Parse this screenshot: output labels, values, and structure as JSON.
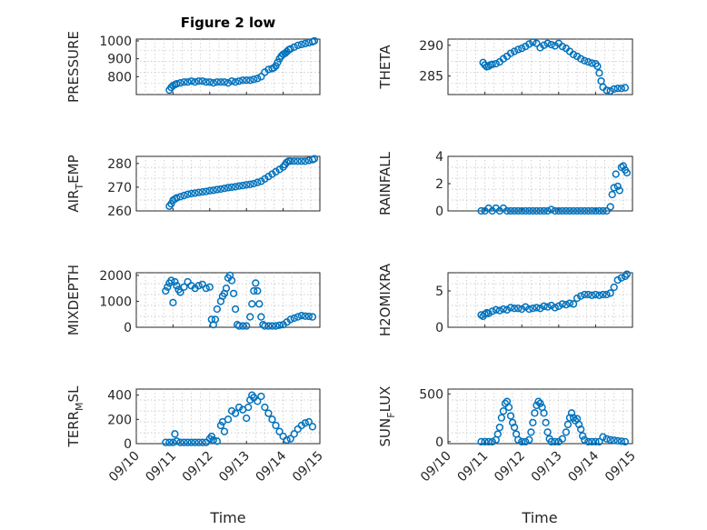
{
  "figure": {
    "title": "Figure 2 low",
    "xlabel": "Time",
    "marker_color": "#0072BD"
  },
  "chart_data": [
    {
      "type": "scatter",
      "ylabel": "PRESSURE",
      "ylim": [
        700,
        1010
      ],
      "yticks": [
        "800",
        "900",
        "1000"
      ],
      "ytick_values": [
        800,
        900,
        1000
      ],
      "xlim": [
        0,
        5
      ],
      "grid": true,
      "x": [
        0.9,
        0.95,
        1.0,
        1.05,
        1.1,
        1.2,
        1.3,
        1.4,
        1.5,
        1.6,
        1.7,
        1.8,
        1.9,
        2.0,
        2.1,
        2.2,
        2.3,
        2.4,
        2.5,
        2.6,
        2.7,
        2.8,
        2.9,
        3.0,
        3.1,
        3.2,
        3.3,
        3.4,
        3.5,
        3.6,
        3.7,
        3.75,
        3.8,
        3.85,
        3.9,
        3.95,
        4.0,
        4.05,
        4.1,
        4.15,
        4.2,
        4.3,
        4.4,
        4.5,
        4.6,
        4.7,
        4.8,
        4.85
      ],
      "y": [
        725,
        740,
        750,
        755,
        760,
        765,
        770,
        770,
        775,
        770,
        775,
        775,
        770,
        770,
        765,
        770,
        770,
        770,
        765,
        775,
        770,
        775,
        780,
        780,
        780,
        785,
        790,
        800,
        825,
        840,
        845,
        850,
        860,
        880,
        900,
        915,
        925,
        930,
        940,
        950,
        955,
        965,
        975,
        980,
        985,
        990,
        995,
        1000
      ]
    },
    {
      "type": "scatter",
      "ylabel": "THETA",
      "ylim": [
        282,
        291
      ],
      "yticks": [
        "285",
        "290"
      ],
      "ytick_values": [
        285,
        290
      ],
      "xlim": [
        0,
        5
      ],
      "grid": true,
      "x": [
        0.95,
        1.0,
        1.05,
        1.1,
        1.15,
        1.2,
        1.3,
        1.4,
        1.5,
        1.6,
        1.7,
        1.8,
        1.9,
        2.0,
        2.1,
        2.2,
        2.3,
        2.4,
        2.5,
        2.6,
        2.7,
        2.8,
        2.9,
        3.0,
        3.1,
        3.2,
        3.3,
        3.4,
        3.5,
        3.6,
        3.7,
        3.8,
        3.9,
        4.0,
        4.05,
        4.1,
        4.15,
        4.2,
        4.3,
        4.4,
        4.5,
        4.6,
        4.7,
        4.8
      ],
      "y": [
        287.2,
        286.8,
        286.5,
        286.6,
        286.8,
        286.9,
        287.0,
        287.3,
        287.8,
        288.2,
        288.7,
        289.0,
        289.3,
        289.5,
        289.8,
        290.2,
        290.5,
        290.3,
        289.6,
        290.0,
        290.3,
        290.1,
        289.9,
        290.3,
        289.8,
        289.5,
        289.0,
        288.5,
        288.2,
        287.8,
        287.5,
        287.3,
        287.1,
        287.0,
        286.6,
        285.5,
        284.2,
        283.2,
        282.7,
        282.6,
        282.9,
        283.0,
        283.0,
        283.1
      ]
    },
    {
      "type": "scatter",
      "ylabel": "AIR_TEMP",
      "ylim": [
        260,
        283
      ],
      "yticks": [
        "260",
        "270",
        "280"
      ],
      "ytick_values": [
        260,
        270,
        280
      ],
      "xlim": [
        0,
        5
      ],
      "grid": true,
      "x": [
        0.9,
        0.95,
        1.0,
        1.05,
        1.1,
        1.2,
        1.3,
        1.4,
        1.5,
        1.6,
        1.7,
        1.8,
        1.9,
        2.0,
        2.1,
        2.2,
        2.3,
        2.4,
        2.5,
        2.6,
        2.7,
        2.8,
        2.9,
        3.0,
        3.1,
        3.2,
        3.3,
        3.4,
        3.5,
        3.6,
        3.7,
        3.8,
        3.9,
        4.0,
        4.05,
        4.1,
        4.15,
        4.2,
        4.3,
        4.4,
        4.5,
        4.6,
        4.7,
        4.8,
        4.85
      ],
      "y": [
        262,
        263,
        264.5,
        265,
        265.5,
        266,
        266.5,
        267,
        267.3,
        267.5,
        267.8,
        268,
        268.2,
        268.5,
        268.7,
        269,
        269.2,
        269.5,
        269.8,
        270,
        270.2,
        270.5,
        270.7,
        271,
        271.2,
        271.5,
        272,
        272.5,
        273.5,
        274.5,
        275.5,
        276.5,
        277.5,
        278.5,
        279.5,
        280.5,
        281,
        281,
        281,
        281,
        281,
        281,
        281.3,
        281.6,
        282
      ]
    },
    {
      "type": "scatter",
      "ylabel": "RAINFALL",
      "ylim": [
        0,
        4
      ],
      "yticks": [
        "0",
        "2",
        "4"
      ],
      "ytick_values": [
        0,
        2,
        4
      ],
      "xlim": [
        0,
        5
      ],
      "grid": true,
      "x": [
        0.9,
        1.0,
        1.1,
        1.2,
        1.3,
        1.4,
        1.5,
        1.6,
        1.7,
        1.8,
        1.9,
        2.0,
        2.1,
        2.2,
        2.3,
        2.4,
        2.5,
        2.6,
        2.7,
        2.8,
        2.9,
        3.0,
        3.1,
        3.2,
        3.3,
        3.4,
        3.5,
        3.6,
        3.7,
        3.8,
        3.9,
        4.0,
        4.1,
        4.2,
        4.3,
        4.4,
        4.45,
        4.5,
        4.55,
        4.6,
        4.65,
        4.7,
        4.75,
        4.8,
        4.85
      ],
      "y": [
        0,
        0,
        0.2,
        0,
        0.2,
        0,
        0.2,
        0,
        0,
        0,
        0,
        0,
        0,
        0,
        0,
        0,
        0,
        0,
        0,
        0.1,
        0,
        0,
        0,
        0,
        0,
        0,
        0,
        0,
        0,
        0,
        0,
        0,
        0,
        0,
        0,
        0.3,
        1.2,
        1.7,
        2.7,
        1.8,
        1.5,
        3.2,
        3.3,
        3.0,
        2.8
      ]
    },
    {
      "type": "scatter",
      "ylabel": "MIXDEPTH",
      "ylim": [
        0,
        2100
      ],
      "yticks": [
        "0",
        "1000",
        "2000"
      ],
      "ytick_values": [
        0,
        1000,
        2000
      ],
      "xlim": [
        0,
        5
      ],
      "grid": true,
      "x": [
        0.8,
        0.85,
        0.9,
        0.95,
        1.0,
        1.05,
        1.1,
        1.15,
        1.2,
        1.3,
        1.4,
        1.5,
        1.6,
        1.7,
        1.8,
        1.9,
        2.0,
        2.05,
        2.1,
        2.15,
        2.2,
        2.3,
        2.35,
        2.4,
        2.45,
        2.5,
        2.55,
        2.6,
        2.65,
        2.7,
        2.75,
        2.8,
        2.9,
        3.0,
        3.1,
        3.15,
        3.2,
        3.25,
        3.3,
        3.35,
        3.4,
        3.45,
        3.5,
        3.6,
        3.7,
        3.8,
        3.9,
        4.0,
        4.1,
        4.2,
        4.3,
        4.4,
        4.5,
        4.6,
        4.7,
        4.8
      ],
      "y": [
        1400,
        1550,
        1700,
        1800,
        950,
        1750,
        1600,
        1450,
        1350,
        1550,
        1750,
        1600,
        1500,
        1600,
        1650,
        1500,
        1550,
        300,
        100,
        300,
        700,
        1000,
        1200,
        1300,
        1500,
        1900,
        2000,
        1800,
        1300,
        700,
        100,
        50,
        50,
        50,
        400,
        900,
        1400,
        1700,
        1400,
        900,
        400,
        100,
        50,
        50,
        50,
        50,
        80,
        100,
        200,
        300,
        350,
        400,
        450,
        430,
        420,
        400
      ]
    },
    {
      "type": "scatter",
      "ylabel": "H2OMIXRA",
      "ylim": [
        0,
        7.5
      ],
      "yticks": [
        "0",
        "5"
      ],
      "ytick_values": [
        0,
        5
      ],
      "xlim": [
        0,
        5
      ],
      "grid": true,
      "x": [
        0.9,
        0.95,
        1.0,
        1.05,
        1.1,
        1.2,
        1.3,
        1.4,
        1.5,
        1.6,
        1.7,
        1.8,
        1.9,
        2.0,
        2.1,
        2.2,
        2.3,
        2.4,
        2.5,
        2.6,
        2.7,
        2.8,
        2.9,
        3.0,
        3.1,
        3.2,
        3.3,
        3.4,
        3.5,
        3.6,
        3.7,
        3.8,
        3.9,
        4.0,
        4.1,
        4.2,
        4.3,
        4.4,
        4.5,
        4.6,
        4.7,
        4.8,
        4.85
      ],
      "y": [
        1.7,
        1.5,
        1.8,
        2.0,
        1.9,
        2.2,
        2.4,
        2.3,
        2.5,
        2.4,
        2.7,
        2.6,
        2.6,
        2.5,
        2.8,
        2.5,
        2.6,
        2.7,
        2.6,
        2.9,
        2.8,
        3.0,
        2.7,
        2.9,
        3.2,
        3.1,
        3.3,
        3.2,
        4.0,
        4.3,
        4.5,
        4.5,
        4.4,
        4.5,
        4.4,
        4.5,
        4.5,
        4.7,
        5.5,
        6.5,
        6.8,
        7.0,
        7.3
      ]
    },
    {
      "type": "scatter",
      "ylabel": "TERR_MSL",
      "ylim": [
        0,
        450
      ],
      "yticks": [
        "0",
        "200",
        "400"
      ],
      "ytick_values": [
        0,
        200,
        400
      ],
      "xlim": [
        0,
        5
      ],
      "grid": true,
      "x": [
        0.8,
        0.9,
        1.0,
        1.05,
        1.1,
        1.2,
        1.3,
        1.4,
        1.5,
        1.6,
        1.7,
        1.8,
        1.9,
        2.0,
        2.05,
        2.1,
        2.2,
        2.3,
        2.35,
        2.4,
        2.5,
        2.6,
        2.7,
        2.8,
        2.9,
        3.0,
        3.05,
        3.1,
        3.15,
        3.2,
        3.3,
        3.4,
        3.5,
        3.6,
        3.7,
        3.8,
        3.9,
        4.0,
        4.1,
        4.2,
        4.3,
        4.4,
        4.5,
        4.6,
        4.7,
        4.8
      ],
      "y": [
        10,
        10,
        10,
        80,
        20,
        10,
        10,
        10,
        10,
        10,
        10,
        10,
        10,
        40,
        60,
        30,
        20,
        150,
        180,
        100,
        200,
        270,
        250,
        300,
        280,
        210,
        300,
        360,
        400,
        380,
        350,
        390,
        300,
        250,
        200,
        150,
        100,
        60,
        30,
        40,
        80,
        120,
        150,
        170,
        180,
        140
      ]
    },
    {
      "type": "scatter",
      "ylabel": "SUN_FLUX",
      "ylim": [
        -20,
        550
      ],
      "yticks": [
        "0",
        "500"
      ],
      "ytick_values": [
        0,
        500
      ],
      "xlim": [
        0,
        5
      ],
      "grid": true,
      "x": [
        0.9,
        1.0,
        1.1,
        1.2,
        1.3,
        1.35,
        1.4,
        1.45,
        1.5,
        1.55,
        1.6,
        1.65,
        1.7,
        1.75,
        1.8,
        1.85,
        1.9,
        2.0,
        2.1,
        2.2,
        2.25,
        2.3,
        2.35,
        2.4,
        2.45,
        2.5,
        2.55,
        2.6,
        2.65,
        2.7,
        2.75,
        2.8,
        2.9,
        3.0,
        3.1,
        3.2,
        3.25,
        3.3,
        3.35,
        3.4,
        3.45,
        3.5,
        3.55,
        3.6,
        3.65,
        3.7,
        3.8,
        3.9,
        4.0,
        4.1,
        4.2,
        4.3,
        4.4,
        4.5,
        4.6,
        4.7,
        4.8
      ],
      "y": [
        0,
        0,
        0,
        0,
        20,
        80,
        150,
        250,
        320,
        400,
        420,
        360,
        270,
        200,
        150,
        80,
        20,
        0,
        0,
        20,
        100,
        200,
        300,
        380,
        420,
        400,
        360,
        300,
        200,
        100,
        30,
        0,
        0,
        0,
        30,
        100,
        180,
        250,
        300,
        250,
        220,
        240,
        180,
        130,
        60,
        20,
        0,
        0,
        0,
        0,
        50,
        30,
        20,
        15,
        10,
        5,
        0
      ]
    }
  ],
  "x_ticks": [
    "09/10",
    "09/11",
    "09/12",
    "09/13",
    "09/14",
    "09/15"
  ]
}
